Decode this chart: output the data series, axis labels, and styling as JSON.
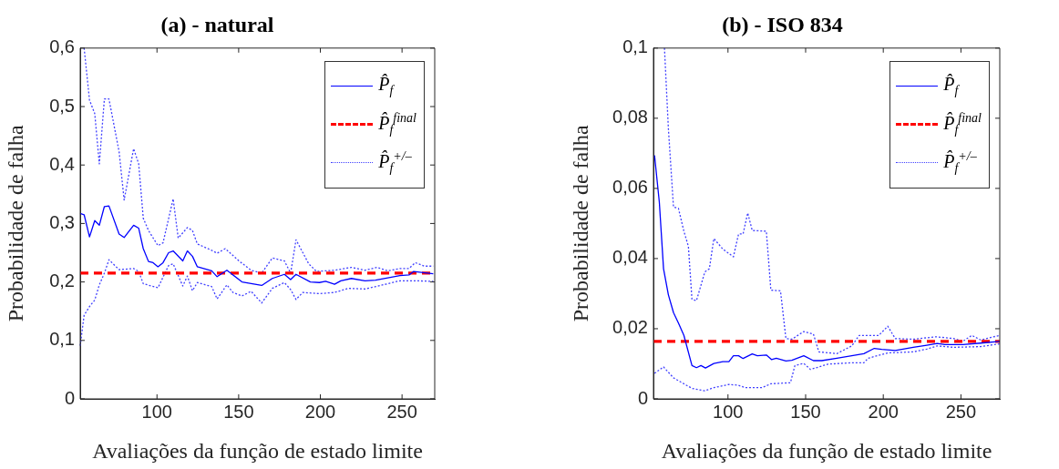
{
  "chart_data": [
    {
      "type": "line",
      "title": "(a) - natural",
      "xlabel": "Avaliações da função de estado limite",
      "ylabel": "Probabilidade de falha",
      "xlim": [
        53,
        270
      ],
      "xticks": [
        100,
        150,
        200,
        250
      ],
      "ylim": [
        0,
        0.6
      ],
      "yticks": [
        {
          "value": 0,
          "label": "0"
        },
        {
          "value": 0.1,
          "label": "0,1"
        },
        {
          "value": 0.2,
          "label": "0,2"
        },
        {
          "value": 0.3,
          "label": "0,3"
        },
        {
          "value": 0.4,
          "label": "0,4"
        },
        {
          "value": 0.5,
          "label": "0,5"
        },
        {
          "value": 0.6,
          "label": "0,6"
        }
      ],
      "legend": "top right",
      "marker": "none",
      "series": [
        {
          "name": "P̂$_{f}$",
          "color": "#0000ff",
          "line_style": "solid",
          "x": [
            53,
            55.4,
            58.7,
            61.9,
            64.7,
            67.8,
            70.6,
            76.8,
            79.9,
            85.7,
            88.8,
            91.6,
            94.8,
            97.6,
            100.6,
            103.7,
            107.1,
            109.9,
            115.8,
            118.6,
            121.7,
            124.7,
            133.5,
            136.8,
            142.8,
            152,
            164.1,
            170.6,
            178,
            181.8,
            185.1,
            193.9,
            199.4,
            203.2,
            208.7,
            212.5,
            219,
            227.3,
            233.8,
            248.7,
            254.3,
            257.1,
            269.1
          ],
          "values": [
            0.317,
            0.315,
            0.277,
            0.305,
            0.297,
            0.329,
            0.33,
            0.282,
            0.276,
            0.297,
            0.292,
            0.257,
            0.235,
            0.233,
            0.226,
            0.233,
            0.25,
            0.253,
            0.236,
            0.253,
            0.244,
            0.226,
            0.219,
            0.209,
            0.22,
            0.2,
            0.194,
            0.206,
            0.213,
            0.204,
            0.213,
            0.2,
            0.199,
            0.201,
            0.196,
            0.202,
            0.206,
            0.202,
            0.203,
            0.211,
            0.212,
            0.218,
            0.214
          ]
        },
        {
          "name": "P̂$_{f}$$^{final}$",
          "color": "#ff0000",
          "line_style": "dashed",
          "x": [
            53,
            270
          ],
          "values": [
            0.215,
            0.215
          ]
        },
        {
          "name": "P̂$_{f}$$^{+/–}$",
          "color": "#4040ff",
          "line_style": "dotted",
          "x": [
            55.4,
            58.7,
            61.9,
            64.7,
            67.8,
            70.6,
            76.8,
            79.9,
            85.7,
            88.8,
            91.6,
            94.8,
            100.6,
            103.7,
            109.9,
            113,
            118.6,
            121.7,
            124.7,
            133.5,
            136.8,
            141.8,
            150.2,
            157.6,
            164.1,
            170.6,
            178,
            181.8,
            185.1,
            192.9,
            197.6,
            208.7,
            219,
            227.3,
            234.7,
            241.2,
            248.7,
            254.3,
            258.1,
            263.6,
            269.1
          ],
          "values": [
            0.6,
            0.511,
            0.488,
            0.402,
            0.513,
            0.513,
            0.423,
            0.34,
            0.428,
            0.402,
            0.309,
            0.288,
            0.262,
            0.267,
            0.342,
            0.275,
            0.293,
            0.288,
            0.265,
            0.254,
            0.249,
            0.257,
            0.236,
            0.22,
            0.215,
            0.241,
            0.236,
            0.215,
            0.272,
            0.231,
            0.218,
            0.22,
            0.225,
            0.22,
            0.225,
            0.219,
            0.223,
            0.223,
            0.233,
            0.227,
            0.227
          ]
        },
        {
          "color": "#4040ff",
          "line_style": "dotted",
          "x": [
            53,
            55.4,
            58.7,
            61.9,
            64.7,
            67.8,
            70.6,
            76.8,
            85.7,
            88.8,
            91.6,
            100.6,
            107.1,
            109.9,
            115.8,
            118.6,
            121.7,
            124.7,
            133.5,
            136.8,
            142.8,
            146.5,
            152,
            157.6,
            164.1,
            170.6,
            178,
            181.8,
            185.1,
            189.2,
            199.4,
            208.7,
            217.1,
            227.3,
            233.8,
            248.7,
            258.1,
            269.1
          ],
          "values": [
            0.091,
            0.143,
            0.158,
            0.169,
            0.195,
            0.215,
            0.238,
            0.221,
            0.223,
            0.218,
            0.197,
            0.19,
            0.228,
            0.231,
            0.193,
            0.21,
            0.185,
            0.199,
            0.192,
            0.171,
            0.195,
            0.182,
            0.176,
            0.184,
            0.164,
            0.189,
            0.199,
            0.187,
            0.17,
            0.182,
            0.18,
            0.182,
            0.189,
            0.188,
            0.192,
            0.202,
            0.202,
            0.201
          ]
        }
      ]
    },
    {
      "type": "line",
      "title": "(b) - ISO 834",
      "xlabel": "Avaliações da função de estado limite",
      "ylabel": "Probabilidade de falha",
      "xlim": [
        52,
        275
      ],
      "xticks": [
        100,
        150,
        200,
        250
      ],
      "ylim": [
        0,
        0.1
      ],
      "yticks": [
        {
          "value": 0,
          "label": "0"
        },
        {
          "value": 0.02,
          "label": "0,02"
        },
        {
          "value": 0.04,
          "label": "0,04"
        },
        {
          "value": 0.06,
          "label": "0,06"
        },
        {
          "value": 0.08,
          "label": "0,08"
        },
        {
          "value": 0.1,
          "label": "0,1"
        }
      ],
      "legend": "top right",
      "marker": "none",
      "series": [
        {
          "name": "P̂$_{f}$",
          "color": "#0000ff",
          "line_style": "solid",
          "x": [
            52.7,
            55.8,
            58.5,
            61.6,
            64.9,
            68.1,
            71.6,
            76.8,
            79.7,
            82.6,
            85.5,
            90.9,
            96.7,
            100.6,
            103.5,
            106.8,
            109.7,
            115.6,
            118.9,
            124.7,
            128,
            131.1,
            137.3,
            141.1,
            148.8,
            155,
            160.4,
            170.1,
            179.7,
            187.5,
            194.2,
            199,
            207.7,
            219.3,
            228,
            234.7,
            239.6,
            251.2,
            262.7,
            274.9
          ],
          "values": [
            0.0694,
            0.056,
            0.0371,
            0.0297,
            0.0246,
            0.0216,
            0.0181,
            0.0095,
            0.0089,
            0.0095,
            0.0088,
            0.0101,
            0.0106,
            0.0106,
            0.0123,
            0.0123,
            0.0115,
            0.0128,
            0.0123,
            0.0125,
            0.0112,
            0.0116,
            0.0108,
            0.011,
            0.0123,
            0.0109,
            0.0109,
            0.0116,
            0.0123,
            0.0129,
            0.0144,
            0.0141,
            0.0138,
            0.0147,
            0.0153,
            0.0158,
            0.0155,
            0.0155,
            0.0159,
            0.0164
          ]
        },
        {
          "name": "P̂$_{f}$$^{final}$",
          "color": "#ff0000",
          "line_style": "dashed",
          "x": [
            52,
            275
          ],
          "values": [
            0.0164,
            0.0164
          ]
        },
        {
          "name": "P̂$_{f}$$^{+/–}$",
          "color": "#4040ff",
          "line_style": "dotted",
          "x": [
            59.1,
            61.6,
            64.9,
            68.1,
            71.6,
            74.5,
            76.8,
            79.7,
            85.1,
            88,
            90.9,
            96.7,
            103.5,
            106.8,
            109.7,
            112.7,
            115.6,
            124.7,
            127.6,
            133.8,
            137.3,
            141.1,
            148.8,
            155,
            158.5,
            170.1,
            179.7,
            184.5,
            197.1,
            202.9,
            207.7,
            219.3,
            233.8,
            245.4,
            251.2,
            257,
            262.7,
            274.9
          ],
          "values": [
            0.1,
            0.0772,
            0.0547,
            0.0543,
            0.0478,
            0.0435,
            0.0284,
            0.028,
            0.0362,
            0.0371,
            0.0457,
            0.0427,
            0.0405,
            0.047,
            0.047,
            0.053,
            0.048,
            0.0478,
            0.031,
            0.0308,
            0.0172,
            0.017,
            0.0192,
            0.0185,
            0.0134,
            0.0129,
            0.0151,
            0.0181,
            0.0181,
            0.0207,
            0.0172,
            0.017,
            0.0177,
            0.0172,
            0.0164,
            0.0181,
            0.0168,
            0.0181
          ]
        },
        {
          "color": "#4040ff",
          "line_style": "dotted",
          "x": [
            52.7,
            58.5,
            64.9,
            71.6,
            76.8,
            85.1,
            90.9,
            100.6,
            106.4,
            111.2,
            121.8,
            127.6,
            140.2,
            143.1,
            148.8,
            153.1,
            158.5,
            164.3,
            179.7,
            187.5,
            190.3,
            202.9,
            219.3,
            228,
            234.7,
            245.4,
            262.7,
            274.9
          ],
          "values": [
            0.0073,
            0.0091,
            0.006,
            0.0043,
            0.003,
            0.0023,
            0.0032,
            0.0041,
            0.0039,
            0.0032,
            0.0032,
            0.0043,
            0.0046,
            0.0095,
            0.0101,
            0.0084,
            0.0091,
            0.0099,
            0.0103,
            0.0103,
            0.0116,
            0.0131,
            0.0134,
            0.0142,
            0.0151,
            0.0147,
            0.0149,
            0.0157
          ]
        }
      ]
    }
  ]
}
